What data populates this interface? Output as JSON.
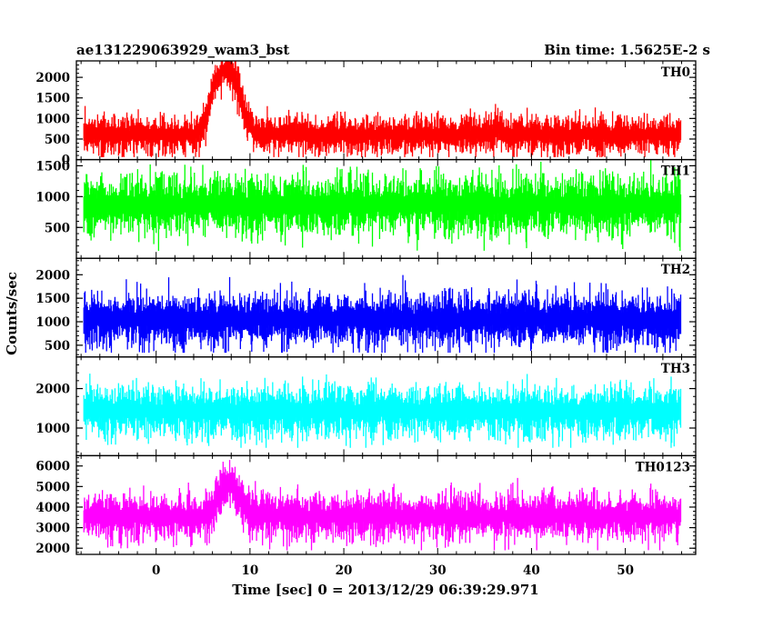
{
  "chart_data": {
    "type": "line",
    "title": "ae131229063929_wam3_bst",
    "subtitle": "Bin time: 1.5625E-2 s",
    "xlabel": "Time [sec] 0 = 2013/12/29 06:39:29.971",
    "ylabel": "Counts/sec",
    "xlim": [
      -8.5,
      57.5
    ],
    "x_ticks": [
      0,
      10,
      20,
      30,
      40,
      50
    ],
    "x_range_data": [
      -7.7,
      55.9
    ],
    "grid": false,
    "panels": [
      {
        "name": "TH0",
        "color": "#ff0000",
        "ylim": [
          0,
          2400
        ],
        "y_ticks": [
          0,
          500,
          1000,
          1500,
          2000
        ],
        "baseline": 620,
        "noise": 270,
        "floor": 60,
        "events": [
          {
            "x": 7.8,
            "value": 1550,
            "width": 1.6
          },
          {
            "x": 6.2,
            "value": 650,
            "width": 1.0
          },
          {
            "x": 36.5,
            "value": 180,
            "width": 0.5
          }
        ]
      },
      {
        "name": "TH1",
        "color": "#00ff00",
        "ylim": [
          0,
          1600
        ],
        "y_ticks": [
          500,
          1000,
          1500
        ],
        "baseline": 880,
        "noise": 280,
        "floor": 110,
        "events": []
      },
      {
        "name": "TH2",
        "color": "#0000ff",
        "ylim": [
          250,
          2350
        ],
        "y_ticks": [
          500,
          1000,
          1500,
          2000
        ],
        "baseline": 1070,
        "noise": 330,
        "floor": 340,
        "events": []
      },
      {
        "name": "TH3",
        "color": "#00ffff",
        "ylim": [
          300,
          2800
        ],
        "y_ticks": [
          1000,
          2000
        ],
        "baseline": 1450,
        "noise": 380,
        "floor": 500,
        "events": []
      },
      {
        "name": "TH0123",
        "color": "#ff00ff",
        "ylim": [
          1700,
          6500
        ],
        "y_ticks": [
          2000,
          3000,
          4000,
          5000,
          6000
        ],
        "baseline": 3600,
        "noise": 660,
        "floor": 1900,
        "events": [
          {
            "x": 7.8,
            "value": 1500,
            "width": 1.6
          }
        ]
      }
    ]
  }
}
